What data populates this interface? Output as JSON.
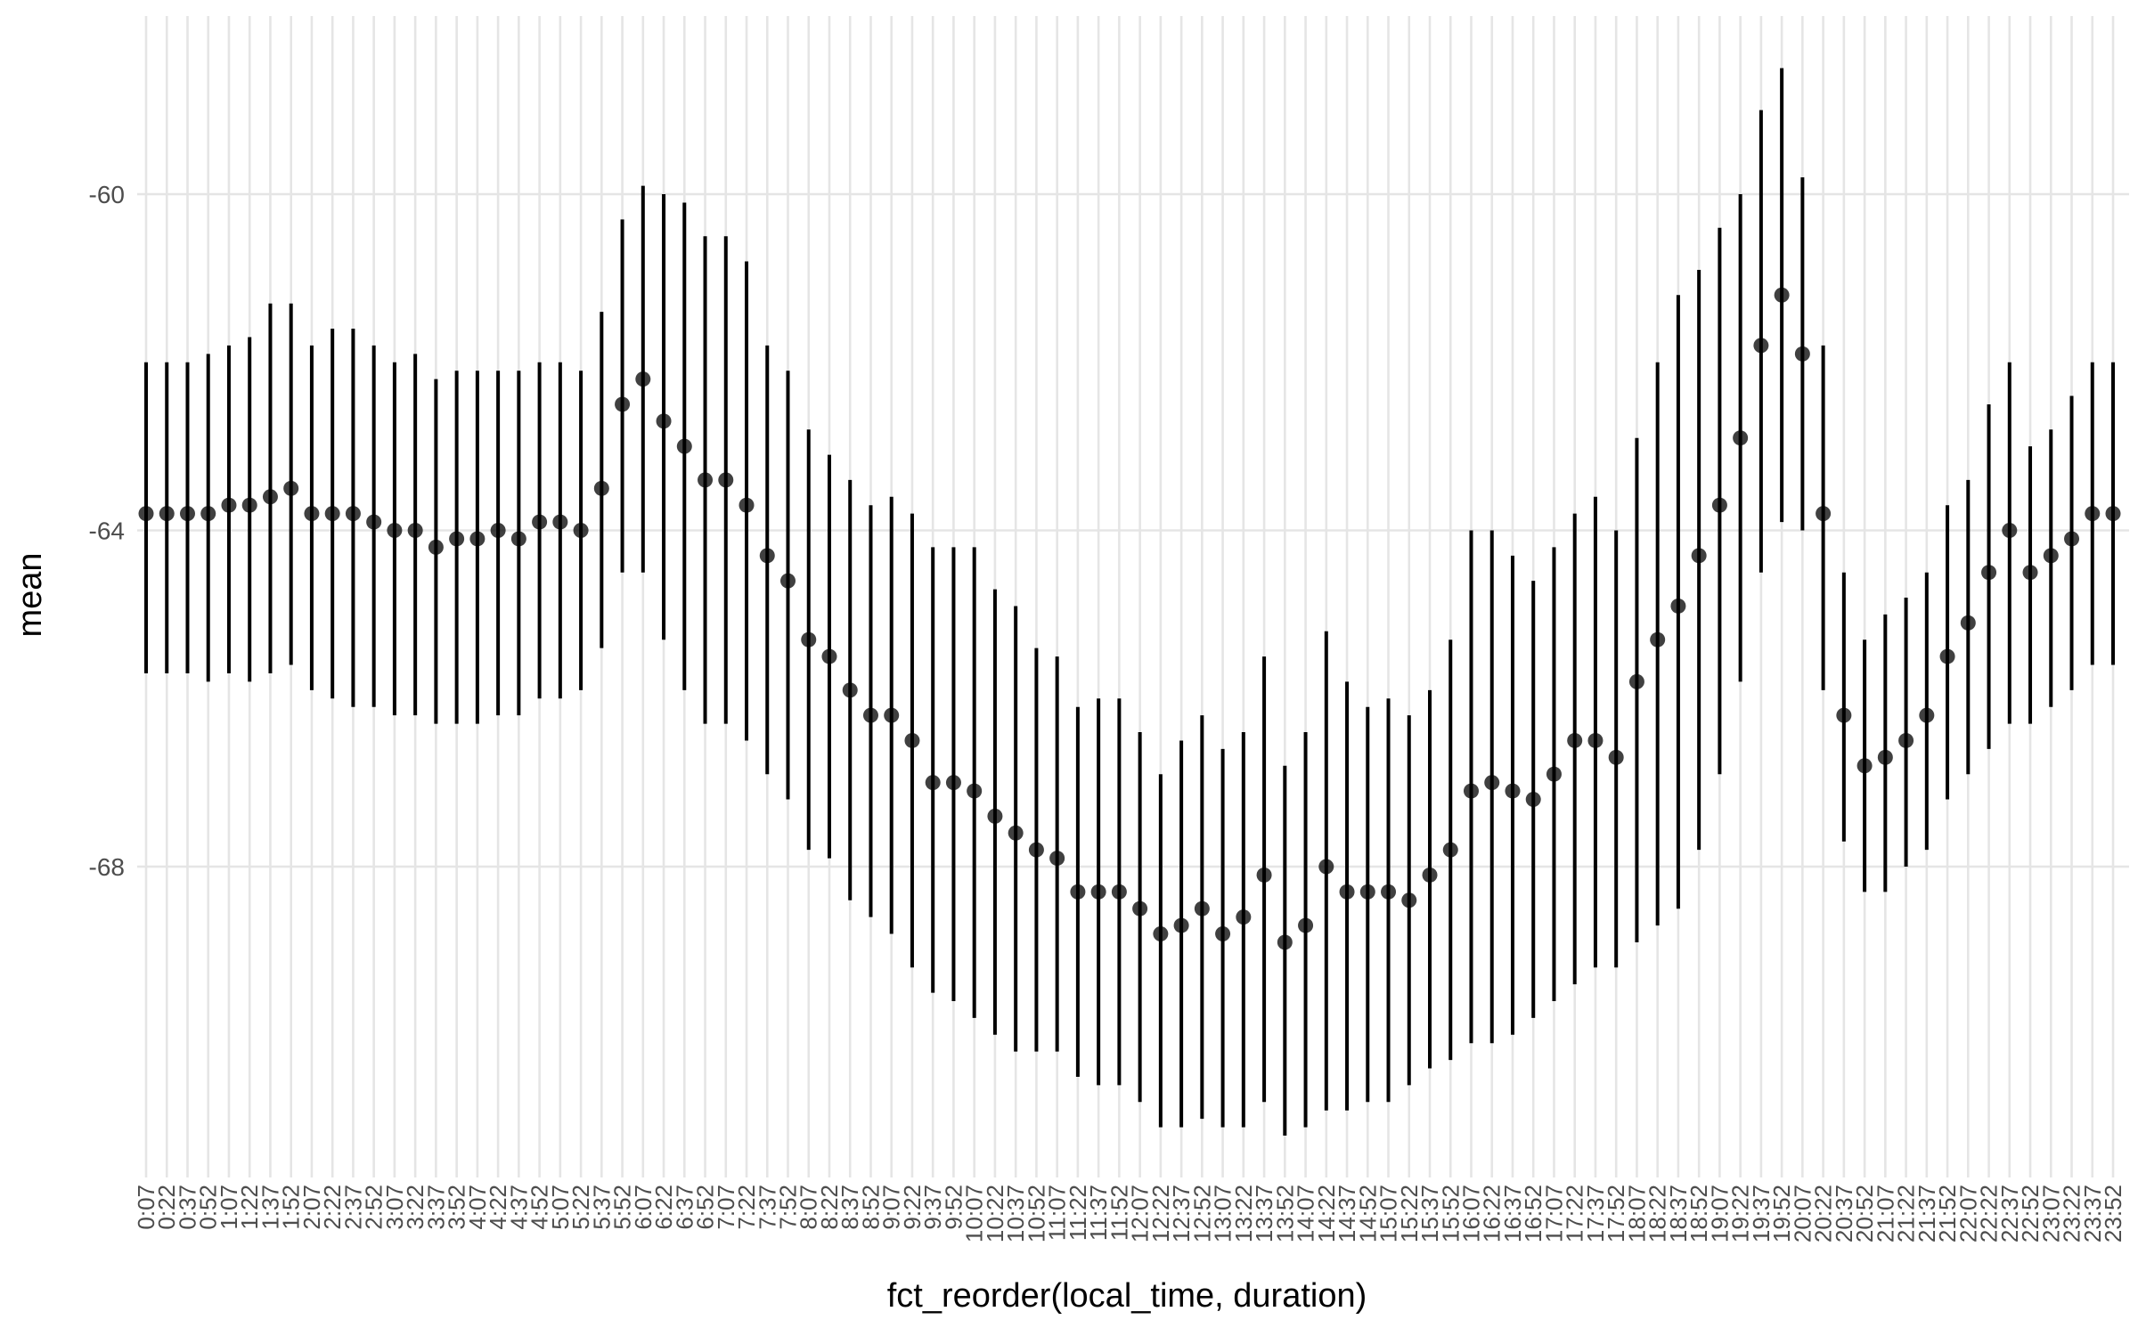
{
  "chart_data": {
    "type": "errorbar",
    "title": "",
    "xlabel": "fct_reorder(local_time, duration)",
    "ylabel": "mean",
    "ylim": [
      -72.0,
      -57.9
    ],
    "y_ticks": [
      -68,
      -64,
      -60
    ],
    "grid": true,
    "categories": [
      "0:07",
      "0:22",
      "0:37",
      "0:52",
      "1:07",
      "1:22",
      "1:37",
      "1:52",
      "2:07",
      "2:22",
      "2:37",
      "2:52",
      "3:07",
      "3:22",
      "3:37",
      "3:52",
      "4:07",
      "4:22",
      "4:37",
      "4:52",
      "5:07",
      "5:22",
      "5:37",
      "5:52",
      "6:07",
      "6:22",
      "6:37",
      "6:52",
      "7:07",
      "7:22",
      "7:37",
      "7:52",
      "8:07",
      "8:22",
      "8:37",
      "8:52",
      "9:07",
      "9:22",
      "9:37",
      "9:52",
      "10:07",
      "10:22",
      "10:37",
      "10:52",
      "11:07",
      "11:22",
      "11:37",
      "11:52",
      "12:07",
      "12:22",
      "12:37",
      "12:52",
      "13:07",
      "13:22",
      "13:37",
      "13:52",
      "14:07",
      "14:22",
      "14:37",
      "14:52",
      "15:07",
      "15:22",
      "15:37",
      "15:52",
      "16:07",
      "16:22",
      "16:37",
      "16:52",
      "17:07",
      "17:22",
      "17:37",
      "17:52",
      "18:07",
      "18:22",
      "18:37",
      "18:52",
      "19:07",
      "19:22",
      "19:37",
      "19:52",
      "20:07",
      "20:22",
      "20:37",
      "20:52",
      "21:07",
      "21:22",
      "21:37",
      "21:52",
      "22:07",
      "22:22",
      "22:37",
      "22:52",
      "23:07",
      "23:22",
      "23:37",
      "23:52"
    ],
    "mean": [
      -63.8,
      -63.8,
      -63.8,
      -63.8,
      -63.7,
      -63.7,
      -63.6,
      -63.5,
      -63.8,
      -63.8,
      -63.8,
      -63.9,
      -64.0,
      -64.0,
      -64.2,
      -64.1,
      -64.1,
      -64.0,
      -64.1,
      -63.9,
      -63.9,
      -64.0,
      -63.5,
      -62.5,
      -62.2,
      -62.7,
      -63.0,
      -63.4,
      -63.4,
      -63.7,
      -64.3,
      -64.6,
      -65.3,
      -65.5,
      -65.9,
      -66.2,
      -66.2,
      -66.5,
      -67.0,
      -67.0,
      -67.1,
      -67.4,
      -67.6,
      -67.8,
      -67.9,
      -68.3,
      -68.3,
      -68.3,
      -68.5,
      -68.8,
      -68.7,
      -68.5,
      -68.8,
      -68.6,
      -68.1,
      -68.9,
      -68.7,
      -68.0,
      -68.3,
      -68.3,
      -68.3,
      -68.4,
      -68.1,
      -67.8,
      -67.1,
      -67.0,
      -67.1,
      -67.2,
      -66.9,
      -66.5,
      -66.5,
      -66.7,
      -65.8,
      -65.3,
      -64.9,
      -64.3,
      -63.7,
      -62.9,
      -61.8,
      -61.2,
      -61.9,
      -63.8,
      -66.2,
      -66.8,
      -66.7,
      -66.5,
      -66.2,
      -65.5,
      -65.1,
      -64.5,
      -64.0,
      -64.5,
      -64.3,
      -64.1,
      -63.8,
      -63.8
    ],
    "lower": [
      -65.7,
      -65.7,
      -65.7,
      -65.8,
      -65.7,
      -65.8,
      -65.7,
      -65.6,
      -65.9,
      -66.0,
      -66.1,
      -66.1,
      -66.2,
      -66.2,
      -66.3,
      -66.3,
      -66.3,
      -66.2,
      -66.2,
      -66.0,
      -66.0,
      -65.9,
      -65.4,
      -64.5,
      -64.5,
      -65.3,
      -65.9,
      -66.3,
      -66.3,
      -66.5,
      -66.9,
      -67.2,
      -67.8,
      -67.9,
      -68.4,
      -68.6,
      -68.8,
      -69.2,
      -69.5,
      -69.6,
      -69.8,
      -70.0,
      -70.2,
      -70.2,
      -70.2,
      -70.5,
      -70.6,
      -70.6,
      -70.8,
      -71.1,
      -71.1,
      -71.0,
      -71.1,
      -71.1,
      -70.8,
      -71.2,
      -71.1,
      -70.9,
      -70.9,
      -70.8,
      -70.8,
      -70.6,
      -70.4,
      -70.3,
      -70.1,
      -70.1,
      -70.0,
      -69.8,
      -69.6,
      -69.4,
      -69.2,
      -69.2,
      -68.9,
      -68.7,
      -68.5,
      -67.8,
      -66.9,
      -65.8,
      -64.5,
      -63.9,
      -64.0,
      -65.9,
      -67.7,
      -68.3,
      -68.3,
      -68.0,
      -67.8,
      -67.2,
      -66.9,
      -66.6,
      -66.3,
      -66.3,
      -66.1,
      -65.9,
      -65.6,
      -65.6
    ],
    "upper": [
      -62.0,
      -62.0,
      -62.0,
      -61.9,
      -61.8,
      -61.7,
      -61.3,
      -61.3,
      -61.8,
      -61.6,
      -61.6,
      -61.8,
      -62.0,
      -61.9,
      -62.2,
      -62.1,
      -62.1,
      -62.1,
      -62.1,
      -62.0,
      -62.0,
      -62.1,
      -61.4,
      -60.3,
      -59.9,
      -60.0,
      -60.1,
      -60.5,
      -60.5,
      -60.8,
      -61.8,
      -62.1,
      -62.8,
      -63.1,
      -63.4,
      -63.7,
      -63.6,
      -63.8,
      -64.2,
      -64.2,
      -64.2,
      -64.7,
      -64.9,
      -65.4,
      -65.5,
      -66.1,
      -66.0,
      -66.0,
      -66.4,
      -66.9,
      -66.5,
      -66.2,
      -66.6,
      -66.4,
      -65.5,
      -66.8,
      -66.4,
      -65.2,
      -65.8,
      -66.1,
      -66.0,
      -66.2,
      -65.9,
      -65.3,
      -64.0,
      -64.0,
      -64.3,
      -64.6,
      -64.2,
      -63.8,
      -63.6,
      -64.0,
      -62.9,
      -62.0,
      -61.2,
      -60.9,
      -60.4,
      -60.0,
      -59.0,
      -58.5,
      -59.8,
      -61.8,
      -64.5,
      -65.3,
      -65.0,
      -64.8,
      -64.5,
      -63.7,
      -63.4,
      -62.5,
      -62.0,
      -63.0,
      -62.8,
      -62.4,
      -62.0,
      -62.0
    ]
  }
}
